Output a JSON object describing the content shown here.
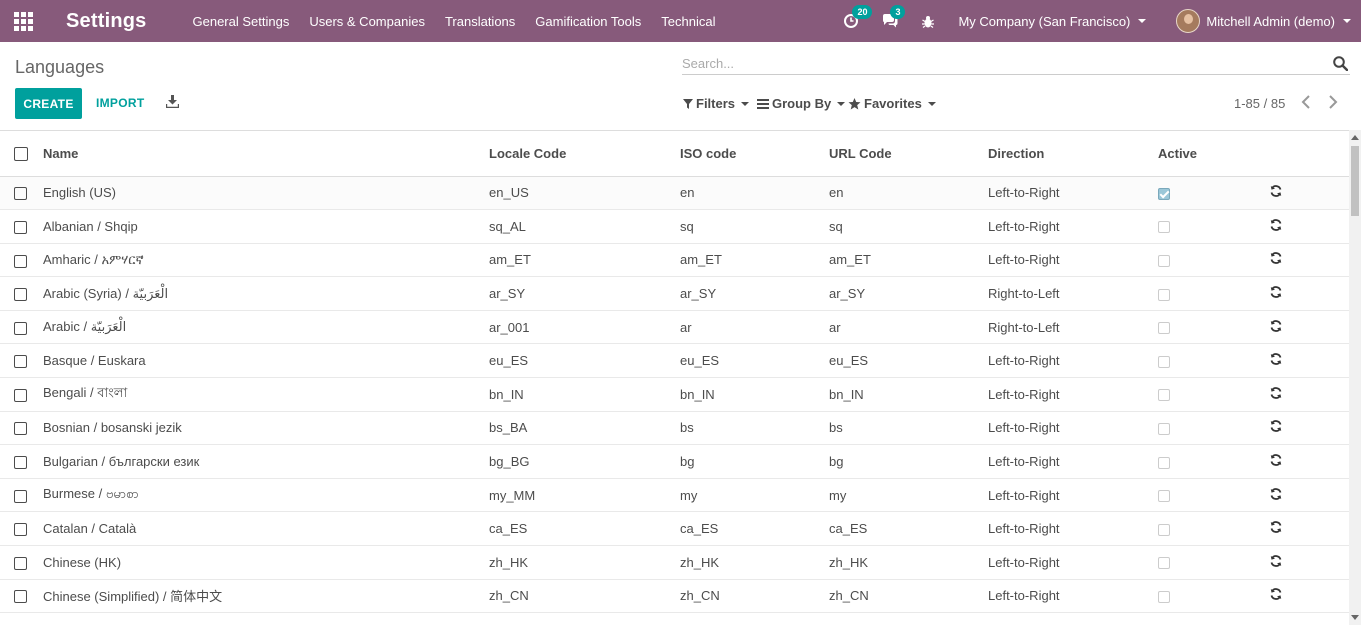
{
  "navbar": {
    "brand": "Settings",
    "menu": [
      "General Settings",
      "Users & Companies",
      "Translations",
      "Gamification Tools",
      "Technical"
    ],
    "activity_badge": "20",
    "messages_badge": "3",
    "company": "My Company (San Francisco)",
    "user": "Mitchell Admin (demo)"
  },
  "page": {
    "title": "Languages",
    "search_placeholder": "Search...",
    "create_label": "CREATE",
    "import_label": "IMPORT",
    "filters_label": "Filters",
    "groupby_label": "Group By",
    "favorites_label": "Favorites",
    "pager": "1-85 / 85"
  },
  "table": {
    "columns": [
      "Name",
      "Locale Code",
      "ISO code",
      "URL Code",
      "Direction",
      "Active"
    ],
    "rows": [
      {
        "name": "English (US)",
        "locale": "en_US",
        "iso": "en",
        "url": "en",
        "direction": "Left-to-Right",
        "active": true
      },
      {
        "name": "Albanian / Shqip",
        "locale": "sq_AL",
        "iso": "sq",
        "url": "sq",
        "direction": "Left-to-Right",
        "active": false
      },
      {
        "name": "Amharic / አምሃርኛ",
        "locale": "am_ET",
        "iso": "am_ET",
        "url": "am_ET",
        "direction": "Left-to-Right",
        "active": false
      },
      {
        "name": "Arabic (Syria) / الْعَرَبيّة",
        "locale": "ar_SY",
        "iso": "ar_SY",
        "url": "ar_SY",
        "direction": "Right-to-Left",
        "active": false
      },
      {
        "name": "Arabic / الْعَرَبيّة",
        "locale": "ar_001",
        "iso": "ar",
        "url": "ar",
        "direction": "Right-to-Left",
        "active": false
      },
      {
        "name": "Basque / Euskara",
        "locale": "eu_ES",
        "iso": "eu_ES",
        "url": "eu_ES",
        "direction": "Left-to-Right",
        "active": false
      },
      {
        "name": "Bengali / বাংলা",
        "locale": "bn_IN",
        "iso": "bn_IN",
        "url": "bn_IN",
        "direction": "Left-to-Right",
        "active": false
      },
      {
        "name": "Bosnian / bosanski jezik",
        "locale": "bs_BA",
        "iso": "bs",
        "url": "bs",
        "direction": "Left-to-Right",
        "active": false
      },
      {
        "name": "Bulgarian / български език",
        "locale": "bg_BG",
        "iso": "bg",
        "url": "bg",
        "direction": "Left-to-Right",
        "active": false
      },
      {
        "name": "Burmese / ဗမာစာ",
        "locale": "my_MM",
        "iso": "my",
        "url": "my",
        "direction": "Left-to-Right",
        "active": false
      },
      {
        "name": "Catalan / Català",
        "locale": "ca_ES",
        "iso": "ca_ES",
        "url": "ca_ES",
        "direction": "Left-to-Right",
        "active": false
      },
      {
        "name": "Chinese (HK)",
        "locale": "zh_HK",
        "iso": "zh_HK",
        "url": "zh_HK",
        "direction": "Left-to-Right",
        "active": false
      },
      {
        "name": "Chinese (Simplified) / 简体中文",
        "locale": "zh_CN",
        "iso": "zh_CN",
        "url": "zh_CN",
        "direction": "Left-to-Right",
        "active": false
      }
    ]
  }
}
